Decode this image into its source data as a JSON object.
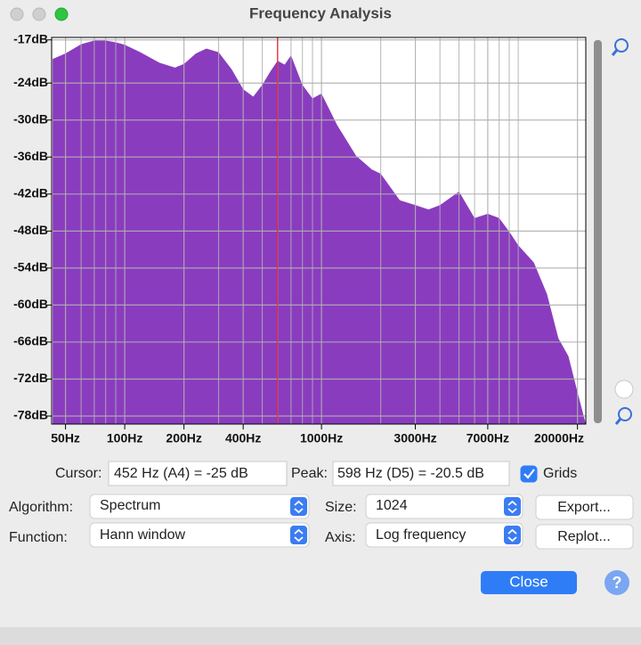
{
  "window": {
    "title": "Frequency Analysis"
  },
  "chart_data": {
    "type": "area",
    "x": [
      43,
      50,
      60,
      70,
      80,
      90,
      100,
      120,
      150,
      180,
      200,
      230,
      260,
      300,
      350,
      400,
      450,
      500,
      550,
      598,
      650,
      700,
      800,
      900,
      1000,
      1200,
      1500,
      1800,
      2000,
      2500,
      3000,
      3500,
      4000,
      5000,
      6000,
      7000,
      8000,
      9000,
      10000,
      12000,
      14000,
      16000,
      18000,
      20000,
      22050
    ],
    "values": [
      -20.1,
      -19.2,
      -17.7,
      -17.1,
      -17.1,
      -17.4,
      -17.8,
      -19.0,
      -20.7,
      -21.5,
      -20.9,
      -19.2,
      -18.4,
      -19.0,
      -21.8,
      -25.0,
      -26.2,
      -24.3,
      -22.1,
      -20.4,
      -21.0,
      -19.5,
      -24.3,
      -26.5,
      -25.7,
      -30.8,
      -35.8,
      -38.0,
      -38.7,
      -43.0,
      -43.8,
      -44.5,
      -43.8,
      -41.6,
      -45.9,
      -45.2,
      -45.9,
      -48.1,
      -50.3,
      -53.1,
      -58.2,
      -65.4,
      -68.3,
      -74.1,
      -79.3
    ],
    "color": "#8a3cbf",
    "log_x": true,
    "xlim": [
      42.5,
      22050
    ],
    "ylim": [
      -79.3,
      -16.6
    ],
    "xticks": [
      {
        "value": 50,
        "label": "50Hz"
      },
      {
        "value": 100,
        "label": "100Hz"
      },
      {
        "value": 200,
        "label": "200Hz"
      },
      {
        "value": 400,
        "label": "400Hz"
      },
      {
        "value": 1000,
        "label": "1000Hz"
      },
      {
        "value": 3000,
        "label": "3000Hz"
      },
      {
        "value": 7000,
        "label": "7000Hz"
      },
      {
        "value": 20000,
        "label": "20000Hz"
      }
    ],
    "xminor": [
      60,
      70,
      80,
      90,
      300,
      500,
      600,
      700,
      800,
      900,
      2000,
      4000,
      5000,
      6000,
      8000,
      9000,
      10000
    ],
    "yticks": [
      {
        "value": -17,
        "label": "-17dB"
      },
      {
        "value": -24,
        "label": "-24dB"
      },
      {
        "value": -30,
        "label": "-30dB"
      },
      {
        "value": -36,
        "label": "-36dB"
      },
      {
        "value": -42,
        "label": "-42dB"
      },
      {
        "value": -48,
        "label": "-48dB"
      },
      {
        "value": -54,
        "label": "-54dB"
      },
      {
        "value": -60,
        "label": "-60dB"
      },
      {
        "value": -66,
        "label": "-66dB"
      },
      {
        "value": -72,
        "label": "-72dB"
      },
      {
        "value": -78,
        "label": "-78dB"
      }
    ],
    "grid": true,
    "marker": {
      "x": 598,
      "color": "#e0303a"
    }
  },
  "controls": {
    "cursor_label": "Cursor:",
    "cursor_value": "452 Hz (A4) = -25 dB",
    "peak_label": "Peak:",
    "peak_value": "598 Hz (D5) = -20.5 dB",
    "grids_label": "Grids",
    "algorithm_label": "Algorithm:",
    "algorithm": "Spectrum",
    "size_label": "Size:",
    "size": "1024",
    "function_label": "Function:",
    "function": "Hann window",
    "axis_label": "Axis:",
    "axis": "Log frequency",
    "export": "Export...",
    "replot": "Replot...",
    "close": "Close",
    "help": "?"
  }
}
